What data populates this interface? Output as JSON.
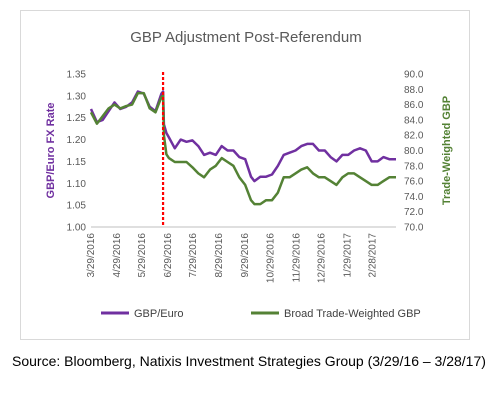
{
  "chart_data": {
    "type": "line",
    "title": "GBP Adjustment Post-Referendum",
    "ylabel_left": "GBP/Euro FX Rate",
    "ylabel_right": "Trade-Weighted GBP",
    "ylim_left": [
      1.0,
      1.35
    ],
    "ylim_right": [
      70.0,
      90.0
    ],
    "yticks_left": [
      "1.35",
      "1.30",
      "1.25",
      "1.20",
      "1.15",
      "1.10",
      "1.05",
      "1.00"
    ],
    "yticks_right": [
      "90.0",
      "88.0",
      "86.0",
      "84.0",
      "82.0",
      "80.0",
      "78.0",
      "76.0",
      "74.0",
      "72.0",
      "70.0"
    ],
    "x_categories": [
      "3/29/2016",
      "4/29/2016",
      "5/29/2016",
      "6/29/2016",
      "7/29/2016",
      "8/29/2016",
      "9/29/2016",
      "10/29/2016",
      "11/29/2016",
      "12/29/2016",
      "1/29/2017",
      "2/28/2017"
    ],
    "x_range": [
      "3/29/2016",
      "3/28/2017"
    ],
    "annotation": {
      "type": "vertical-dashed-line",
      "date": "6/23/2016",
      "color": "#ff0000"
    },
    "legend_position": "bottom",
    "grid": false,
    "series": [
      {
        "name": "GBP/Euro",
        "axis": "left",
        "color": "#7030a0",
        "points": [
          [
            "3/29/2016",
            1.27
          ],
          [
            "4/5/2016",
            1.24
          ],
          [
            "4/12/2016",
            1.245
          ],
          [
            "4/19/2016",
            1.265
          ],
          [
            "4/26/2016",
            1.285
          ],
          [
            "5/3/2016",
            1.27
          ],
          [
            "5/10/2016",
            1.275
          ],
          [
            "5/17/2016",
            1.285
          ],
          [
            "5/24/2016",
            1.31
          ],
          [
            "5/31/2016",
            1.305
          ],
          [
            "6/7/2016",
            1.275
          ],
          [
            "6/14/2016",
            1.265
          ],
          [
            "6/21/2016",
            1.305
          ],
          [
            "6/23/2016",
            1.31
          ],
          [
            "6/24/2016",
            1.235
          ],
          [
            "6/27/2016",
            1.215
          ],
          [
            "6/30/2016",
            1.205
          ],
          [
            "7/7/2016",
            1.18
          ],
          [
            "7/14/2016",
            1.2
          ],
          [
            "7/21/2016",
            1.195
          ],
          [
            "7/28/2016",
            1.198
          ],
          [
            "8/4/2016",
            1.185
          ],
          [
            "8/11/2016",
            1.165
          ],
          [
            "8/18/2016",
            1.17
          ],
          [
            "8/25/2016",
            1.165
          ],
          [
            "9/1/2016",
            1.185
          ],
          [
            "9/8/2016",
            1.175
          ],
          [
            "9/15/2016",
            1.175
          ],
          [
            "9/22/2016",
            1.16
          ],
          [
            "9/29/2016",
            1.155
          ],
          [
            "10/6/2016",
            1.115
          ],
          [
            "10/10/2016",
            1.105
          ],
          [
            "10/17/2016",
            1.115
          ],
          [
            "10/24/2016",
            1.115
          ],
          [
            "10/31/2016",
            1.12
          ],
          [
            "11/7/2016",
            1.14
          ],
          [
            "11/14/2016",
            1.165
          ],
          [
            "11/21/2016",
            1.17
          ],
          [
            "11/28/2016",
            1.175
          ],
          [
            "12/5/2016",
            1.185
          ],
          [
            "12/12/2016",
            1.19
          ],
          [
            "12/19/2016",
            1.19
          ],
          [
            "12/26/2016",
            1.175
          ],
          [
            "1/2/2017",
            1.175
          ],
          [
            "1/9/2017",
            1.16
          ],
          [
            "1/16/2017",
            1.15
          ],
          [
            "1/23/2017",
            1.165
          ],
          [
            "1/30/2017",
            1.165
          ],
          [
            "2/6/2017",
            1.175
          ],
          [
            "2/13/2017",
            1.18
          ],
          [
            "2/20/2017",
            1.175
          ],
          [
            "2/27/2017",
            1.15
          ],
          [
            "3/6/2017",
            1.15
          ],
          [
            "3/13/2017",
            1.16
          ],
          [
            "3/20/2017",
            1.155
          ],
          [
            "3/28/2017",
            1.155
          ]
        ]
      },
      {
        "name": "Broad Trade-Weighted GBP",
        "axis": "right",
        "color": "#548235",
        "points": [
          [
            "3/29/2016",
            85.0
          ],
          [
            "4/5/2016",
            83.5
          ],
          [
            "4/12/2016",
            84.5
          ],
          [
            "4/19/2016",
            85.5
          ],
          [
            "4/26/2016",
            86.0
          ],
          [
            "5/3/2016",
            85.5
          ],
          [
            "5/10/2016",
            85.8
          ],
          [
            "5/17/2016",
            86.0
          ],
          [
            "5/24/2016",
            87.5
          ],
          [
            "5/31/2016",
            87.5
          ],
          [
            "6/7/2016",
            85.5
          ],
          [
            "6/14/2016",
            85.0
          ],
          [
            "6/21/2016",
            87.0
          ],
          [
            "6/23/2016",
            87.2
          ],
          [
            "6/24/2016",
            82.0
          ],
          [
            "6/27/2016",
            79.5
          ],
          [
            "6/30/2016",
            79.0
          ],
          [
            "7/7/2016",
            78.5
          ],
          [
            "7/14/2016",
            78.5
          ],
          [
            "7/21/2016",
            78.5
          ],
          [
            "7/28/2016",
            77.8
          ],
          [
            "8/4/2016",
            77.0
          ],
          [
            "8/11/2016",
            76.5
          ],
          [
            "8/18/2016",
            77.5
          ],
          [
            "8/25/2016",
            78.0
          ],
          [
            "9/1/2016",
            79.0
          ],
          [
            "9/8/2016",
            78.5
          ],
          [
            "9/15/2016",
            78.0
          ],
          [
            "9/22/2016",
            76.5
          ],
          [
            "9/29/2016",
            75.5
          ],
          [
            "10/6/2016",
            73.5
          ],
          [
            "10/10/2016",
            73.0
          ],
          [
            "10/17/2016",
            73.0
          ],
          [
            "10/24/2016",
            73.5
          ],
          [
            "10/31/2016",
            73.5
          ],
          [
            "11/7/2016",
            74.5
          ],
          [
            "11/14/2016",
            76.5
          ],
          [
            "11/21/2016",
            76.5
          ],
          [
            "11/28/2016",
            77.0
          ],
          [
            "12/5/2016",
            77.5
          ],
          [
            "12/12/2016",
            77.8
          ],
          [
            "12/19/2016",
            77.0
          ],
          [
            "12/26/2016",
            76.5
          ],
          [
            "1/2/2017",
            76.5
          ],
          [
            "1/9/2017",
            76.0
          ],
          [
            "1/16/2017",
            75.5
          ],
          [
            "1/23/2017",
            76.5
          ],
          [
            "1/30/2017",
            77.0
          ],
          [
            "2/6/2017",
            77.0
          ],
          [
            "2/13/2017",
            76.5
          ],
          [
            "2/20/2017",
            76.0
          ],
          [
            "2/27/2017",
            75.5
          ],
          [
            "3/6/2017",
            75.5
          ],
          [
            "3/13/2017",
            76.0
          ],
          [
            "3/20/2017",
            76.5
          ],
          [
            "3/28/2017",
            76.5
          ]
        ]
      }
    ]
  },
  "source_text": "Source: Bloomberg, Natixis Investment Strategies Group (3/29/16 – 3/28/17)"
}
